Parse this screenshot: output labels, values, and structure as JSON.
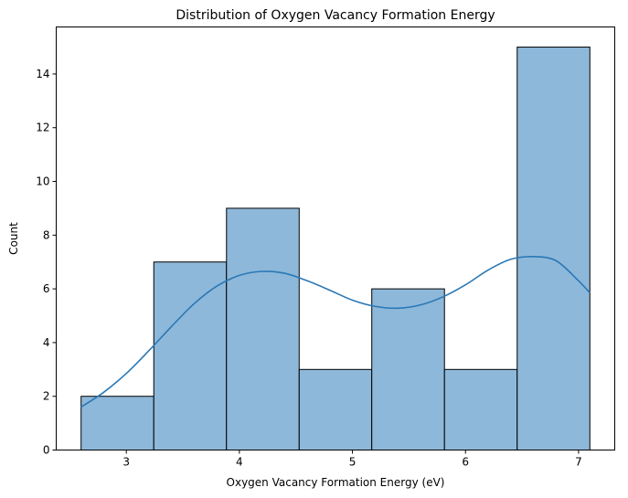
{
  "chart_data": {
    "type": "bar",
    "subtype": "histogram with kde",
    "title": "Distribution of Oxygen Vacancy Formation Energy",
    "xlabel": "Oxygen Vacancy Formation Energy (eV)",
    "ylabel": "Count",
    "xlim": [
      2.38,
      7.32
    ],
    "ylim": [
      0,
      15.75
    ],
    "x_ticks": [
      3,
      4,
      5,
      6,
      7
    ],
    "y_ticks": [
      0,
      2,
      4,
      6,
      8,
      10,
      12,
      14
    ],
    "bins": [
      {
        "start": 2.6,
        "end": 3.243,
        "count": 2
      },
      {
        "start": 3.243,
        "end": 3.886,
        "count": 7
      },
      {
        "start": 3.886,
        "end": 4.529,
        "count": 9
      },
      {
        "start": 4.529,
        "end": 5.171,
        "count": 3
      },
      {
        "start": 5.171,
        "end": 5.814,
        "count": 6
      },
      {
        "start": 5.814,
        "end": 6.457,
        "count": 3
      },
      {
        "start": 6.457,
        "end": 7.1,
        "count": 15
      }
    ],
    "kde": {
      "x": [
        2.6,
        2.8,
        3.0,
        3.2,
        3.4,
        3.6,
        3.8,
        4.0,
        4.2,
        4.4,
        4.6,
        4.8,
        5.0,
        5.2,
        5.4,
        5.6,
        5.8,
        6.0,
        6.2,
        6.4,
        6.6,
        6.8,
        7.0,
        7.1
      ],
      "y": [
        1.6,
        2.15,
        2.85,
        3.7,
        4.6,
        5.45,
        6.1,
        6.5,
        6.65,
        6.58,
        6.3,
        5.95,
        5.58,
        5.35,
        5.28,
        5.4,
        5.7,
        6.15,
        6.7,
        7.1,
        7.2,
        7.05,
        6.3,
        5.85
      ]
    },
    "colors": {
      "bar_fill": "#8db8da",
      "bar_edge": "#000000",
      "kde_line": "#2a78b5"
    },
    "grid": false,
    "legend": "none"
  }
}
